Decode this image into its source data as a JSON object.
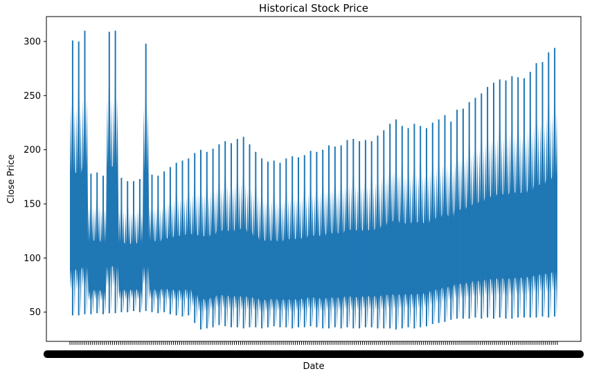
{
  "chart_data": {
    "type": "line",
    "title": "Historical Stock Price",
    "xlabel": "Date",
    "ylabel": "Close Price",
    "ylim": [
      23,
      323
    ],
    "yticks": [
      50,
      100,
      150,
      200,
      250,
      300
    ],
    "grid": false,
    "legend": "none",
    "x_tick_labels_note": "dense overlapping date tick labels (unreadable)",
    "series": [
      {
        "color": "#1f77b4",
        "segments": [
          {
            "low": 47,
            "high": 301
          },
          {
            "low": 47,
            "high": 300
          },
          {
            "low": 48,
            "high": 310
          },
          {
            "low": 48,
            "high": 178
          },
          {
            "low": 49,
            "high": 179
          },
          {
            "low": 48,
            "high": 176
          },
          {
            "low": 49,
            "high": 309
          },
          {
            "low": 49,
            "high": 310
          },
          {
            "low": 50,
            "high": 174
          },
          {
            "low": 50,
            "high": 171
          },
          {
            "low": 51,
            "high": 171
          },
          {
            "low": 50,
            "high": 173
          },
          {
            "low": 51,
            "high": 298
          },
          {
            "low": 50,
            "high": 177
          },
          {
            "low": 49,
            "high": 176
          },
          {
            "low": 50,
            "high": 180
          },
          {
            "low": 48,
            "high": 184
          },
          {
            "low": 47,
            "high": 188
          },
          {
            "low": 46,
            "high": 190
          },
          {
            "low": 47,
            "high": 192
          },
          {
            "low": 40,
            "high": 197
          },
          {
            "low": 34,
            "high": 200
          },
          {
            "low": 35,
            "high": 198
          },
          {
            "low": 36,
            "high": 201
          },
          {
            "low": 38,
            "high": 205
          },
          {
            "low": 37,
            "high": 208
          },
          {
            "low": 36,
            "high": 206
          },
          {
            "low": 36,
            "high": 210
          },
          {
            "low": 35,
            "high": 212
          },
          {
            "low": 36,
            "high": 205
          },
          {
            "low": 36,
            "high": 198
          },
          {
            "low": 35,
            "high": 192
          },
          {
            "low": 36,
            "high": 189
          },
          {
            "low": 37,
            "high": 190
          },
          {
            "low": 36,
            "high": 188
          },
          {
            "low": 36,
            "high": 192
          },
          {
            "low": 35,
            "high": 194
          },
          {
            "low": 36,
            "high": 193
          },
          {
            "low": 36,
            "high": 195
          },
          {
            "low": 37,
            "high": 199
          },
          {
            "low": 36,
            "high": 198
          },
          {
            "low": 35,
            "high": 200
          },
          {
            "low": 35,
            "high": 204
          },
          {
            "low": 36,
            "high": 203
          },
          {
            "low": 35,
            "high": 204
          },
          {
            "low": 36,
            "high": 209
          },
          {
            "low": 35,
            "high": 210
          },
          {
            "low": 35,
            "high": 208
          },
          {
            "low": 36,
            "high": 209
          },
          {
            "low": 36,
            "high": 208
          },
          {
            "low": 35,
            "high": 213
          },
          {
            "low": 35,
            "high": 218
          },
          {
            "low": 35,
            "high": 224
          },
          {
            "low": 34,
            "high": 228
          },
          {
            "low": 35,
            "high": 222
          },
          {
            "low": 36,
            "high": 220
          },
          {
            "low": 35,
            "high": 224
          },
          {
            "low": 36,
            "high": 222
          },
          {
            "low": 37,
            "high": 220
          },
          {
            "low": 39,
            "high": 225
          },
          {
            "low": 40,
            "high": 228
          },
          {
            "low": 41,
            "high": 232
          },
          {
            "low": 43,
            "high": 226
          },
          {
            "low": 44,
            "high": 237
          },
          {
            "low": 44,
            "high": 238
          },
          {
            "low": 44,
            "high": 244
          },
          {
            "low": 45,
            "high": 248
          },
          {
            "low": 44,
            "high": 252
          },
          {
            "low": 45,
            "high": 258
          },
          {
            "low": 44,
            "high": 262
          },
          {
            "low": 45,
            "high": 265
          },
          {
            "low": 44,
            "high": 264
          },
          {
            "low": 44,
            "high": 268
          },
          {
            "low": 45,
            "high": 267
          },
          {
            "low": 45,
            "high": 266
          },
          {
            "low": 45,
            "high": 272
          },
          {
            "low": 45,
            "high": 280
          },
          {
            "low": 46,
            "high": 281
          },
          {
            "low": 45,
            "high": 290
          },
          {
            "low": 46,
            "high": 294
          }
        ]
      }
    ]
  }
}
